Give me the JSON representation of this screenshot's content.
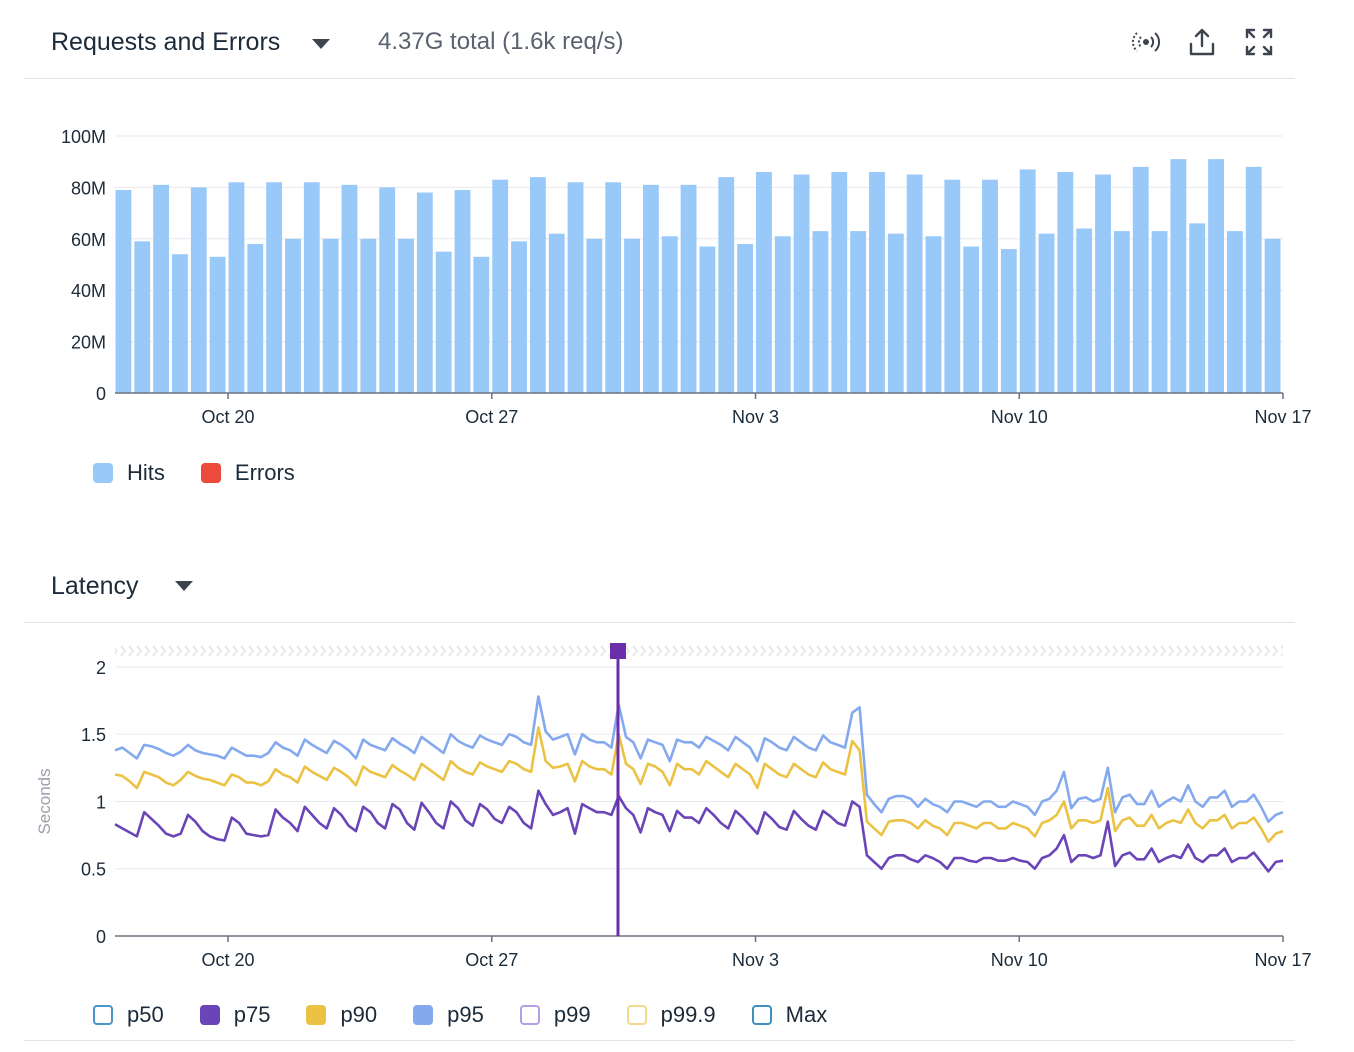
{
  "requests_panel": {
    "title": "Requests and Errors",
    "summary": "4.37G total (1.6k req/s)",
    "icons": [
      "live-stream-icon",
      "export-icon",
      "fullscreen-icon"
    ]
  },
  "latency_panel": {
    "title": "Latency"
  },
  "colors": {
    "hits": "#99c9f8",
    "errors": "#eb4a3d",
    "p50": "#4a94c9",
    "p75": "#6a45b8",
    "p90": "#ebc243",
    "p95": "#85a9ee",
    "p99": "#b49fe6",
    "p99_9": "#f5d98c",
    "max": "#3f8fbf",
    "marker": "#6a2fa8"
  },
  "chart_data": [
    {
      "type": "bar",
      "series": [
        {
          "name": "Hits",
          "values": [
            79,
            59,
            81,
            54,
            80,
            53,
            82,
            58,
            82,
            60,
            82,
            60,
            81,
            60,
            80,
            60,
            78,
            55,
            79,
            53,
            83,
            59,
            84,
            62,
            82,
            60,
            82,
            60,
            81,
            61,
            81,
            57,
            84,
            58,
            86,
            61,
            85,
            63,
            86,
            63,
            86,
            62,
            85,
            61,
            83,
            57,
            83,
            56,
            87,
            62,
            86,
            64,
            85,
            63,
            88,
            63,
            91,
            66,
            91,
            63,
            88,
            60
          ]
        },
        {
          "name": "Errors",
          "values": []
        }
      ],
      "x_start": "2019-10-17",
      "x_end": "2019-11-17",
      "xticks": [
        "Oct 20",
        "Oct 27",
        "Nov 3",
        "Nov 10",
        "Nov 17"
      ],
      "yticks": [
        "0",
        "20M",
        "40M",
        "60M",
        "80M",
        "100M"
      ],
      "ylim": [
        0,
        100
      ],
      "ylabel": "",
      "grid": true,
      "legend": "bottom-left"
    },
    {
      "type": "line",
      "ylabel": "Seconds",
      "ylim": [
        0,
        2.2
      ],
      "yticks": [
        "0",
        "0.5",
        "1",
        "1.5",
        "2"
      ],
      "xticks": [
        "Oct 20",
        "Oct 27",
        "Nov 3",
        "Nov 10",
        "Nov 17"
      ],
      "x_start": "2019-10-17",
      "x_end": "2019-11-17",
      "marker_date": "2019-10-30",
      "legend": "bottom-left",
      "legend_entries": [
        "p50",
        "p75",
        "p90",
        "p95",
        "p99",
        "p99.9",
        "Max"
      ],
      "series": [
        {
          "name": "p75",
          "values": [
            0.83,
            0.8,
            0.77,
            0.74,
            0.92,
            0.87,
            0.82,
            0.76,
            0.74,
            0.76,
            0.9,
            0.85,
            0.78,
            0.74,
            0.72,
            0.71,
            0.88,
            0.84,
            0.76,
            0.75,
            0.74,
            0.75,
            0.94,
            0.88,
            0.84,
            0.78,
            0.96,
            0.9,
            0.84,
            0.8,
            0.95,
            0.9,
            0.82,
            0.78,
            0.96,
            0.92,
            0.84,
            0.8,
            0.98,
            0.94,
            0.84,
            0.79,
            0.99,
            0.92,
            0.84,
            0.8,
            1.0,
            0.95,
            0.86,
            0.82,
            0.98,
            0.94,
            0.87,
            0.84,
            0.96,
            0.92,
            0.84,
            0.8,
            1.08,
            0.98,
            0.9,
            0.92,
            0.95,
            0.76,
            0.98,
            0.95,
            0.92,
            0.92,
            0.9,
            1.04,
            0.95,
            0.9,
            0.77,
            0.95,
            0.92,
            0.9,
            0.78,
            0.93,
            0.88,
            0.88,
            0.84,
            0.95,
            0.9,
            0.84,
            0.8,
            0.93,
            0.88,
            0.82,
            0.76,
            0.92,
            0.87,
            0.81,
            0.79,
            0.93,
            0.87,
            0.82,
            0.79,
            0.93,
            0.89,
            0.84,
            0.82,
            1.0,
            0.96,
            0.6,
            0.55,
            0.5,
            0.58,
            0.6,
            0.6,
            0.57,
            0.55,
            0.6,
            0.58,
            0.55,
            0.5,
            0.58,
            0.58,
            0.56,
            0.55,
            0.58,
            0.58,
            0.56,
            0.56,
            0.58,
            0.56,
            0.55,
            0.5,
            0.58,
            0.6,
            0.65,
            0.75,
            0.55,
            0.6,
            0.6,
            0.58,
            0.6,
            0.85,
            0.52,
            0.6,
            0.62,
            0.57,
            0.57,
            0.65,
            0.55,
            0.58,
            0.6,
            0.58,
            0.68,
            0.58,
            0.55,
            0.6,
            0.6,
            0.65,
            0.55,
            0.58,
            0.58,
            0.62,
            0.55,
            0.48,
            0.55,
            0.56
          ]
        },
        {
          "name": "p90",
          "values": [
            1.2,
            1.19,
            1.15,
            1.1,
            1.22,
            1.2,
            1.18,
            1.14,
            1.12,
            1.16,
            1.22,
            1.19,
            1.17,
            1.16,
            1.14,
            1.12,
            1.2,
            1.18,
            1.14,
            1.14,
            1.12,
            1.15,
            1.24,
            1.2,
            1.18,
            1.14,
            1.26,
            1.22,
            1.19,
            1.16,
            1.25,
            1.22,
            1.18,
            1.12,
            1.26,
            1.22,
            1.2,
            1.18,
            1.27,
            1.23,
            1.2,
            1.16,
            1.28,
            1.24,
            1.2,
            1.16,
            1.3,
            1.25,
            1.22,
            1.2,
            1.29,
            1.26,
            1.24,
            1.22,
            1.3,
            1.28,
            1.24,
            1.22,
            1.55,
            1.3,
            1.25,
            1.26,
            1.28,
            1.15,
            1.3,
            1.26,
            1.24,
            1.24,
            1.2,
            1.5,
            1.28,
            1.24,
            1.13,
            1.28,
            1.26,
            1.22,
            1.12,
            1.28,
            1.24,
            1.24,
            1.2,
            1.3,
            1.26,
            1.22,
            1.18,
            1.28,
            1.24,
            1.2,
            1.1,
            1.28,
            1.24,
            1.2,
            1.18,
            1.28,
            1.24,
            1.2,
            1.18,
            1.29,
            1.24,
            1.22,
            1.2,
            1.45,
            1.38,
            0.85,
            0.8,
            0.75,
            0.85,
            0.86,
            0.86,
            0.84,
            0.8,
            0.86,
            0.82,
            0.8,
            0.75,
            0.84,
            0.84,
            0.82,
            0.8,
            0.84,
            0.84,
            0.8,
            0.8,
            0.84,
            0.82,
            0.8,
            0.74,
            0.84,
            0.86,
            0.9,
            1.0,
            0.8,
            0.86,
            0.86,
            0.84,
            0.86,
            1.1,
            0.78,
            0.86,
            0.88,
            0.82,
            0.82,
            0.9,
            0.8,
            0.84,
            0.86,
            0.84,
            0.94,
            0.84,
            0.8,
            0.86,
            0.86,
            0.9,
            0.8,
            0.84,
            0.84,
            0.88,
            0.8,
            0.7,
            0.76,
            0.78
          ]
        },
        {
          "name": "p95",
          "values": [
            1.38,
            1.4,
            1.36,
            1.32,
            1.42,
            1.41,
            1.39,
            1.36,
            1.34,
            1.37,
            1.42,
            1.38,
            1.36,
            1.35,
            1.34,
            1.32,
            1.4,
            1.37,
            1.34,
            1.34,
            1.33,
            1.36,
            1.44,
            1.4,
            1.38,
            1.34,
            1.46,
            1.42,
            1.39,
            1.36,
            1.45,
            1.42,
            1.38,
            1.32,
            1.46,
            1.42,
            1.4,
            1.38,
            1.47,
            1.43,
            1.4,
            1.36,
            1.48,
            1.44,
            1.4,
            1.36,
            1.5,
            1.45,
            1.42,
            1.4,
            1.49,
            1.46,
            1.44,
            1.42,
            1.5,
            1.48,
            1.44,
            1.42,
            1.78,
            1.52,
            1.46,
            1.48,
            1.5,
            1.35,
            1.5,
            1.46,
            1.44,
            1.44,
            1.4,
            1.72,
            1.48,
            1.44,
            1.32,
            1.46,
            1.44,
            1.42,
            1.3,
            1.46,
            1.44,
            1.44,
            1.4,
            1.48,
            1.45,
            1.42,
            1.38,
            1.48,
            1.44,
            1.4,
            1.3,
            1.47,
            1.44,
            1.4,
            1.38,
            1.48,
            1.44,
            1.4,
            1.38,
            1.49,
            1.44,
            1.42,
            1.4,
            1.66,
            1.7,
            1.05,
            0.98,
            0.92,
            1.02,
            1.04,
            1.04,
            1.02,
            0.96,
            1.02,
            0.98,
            0.96,
            0.92,
            1.0,
            1.0,
            0.98,
            0.96,
            1.0,
            1.0,
            0.96,
            0.96,
            1.0,
            0.98,
            0.96,
            0.9,
            1.0,
            1.02,
            1.08,
            1.22,
            0.95,
            1.02,
            1.03,
            1.0,
            1.02,
            1.25,
            0.92,
            1.03,
            1.05,
            0.98,
            0.98,
            1.08,
            0.96,
            1.0,
            1.03,
            1.0,
            1.12,
            1.0,
            0.96,
            1.03,
            1.03,
            1.08,
            0.96,
            1.0,
            1.0,
            1.05,
            0.96,
            0.85,
            0.9,
            0.92
          ]
        }
      ]
    }
  ]
}
